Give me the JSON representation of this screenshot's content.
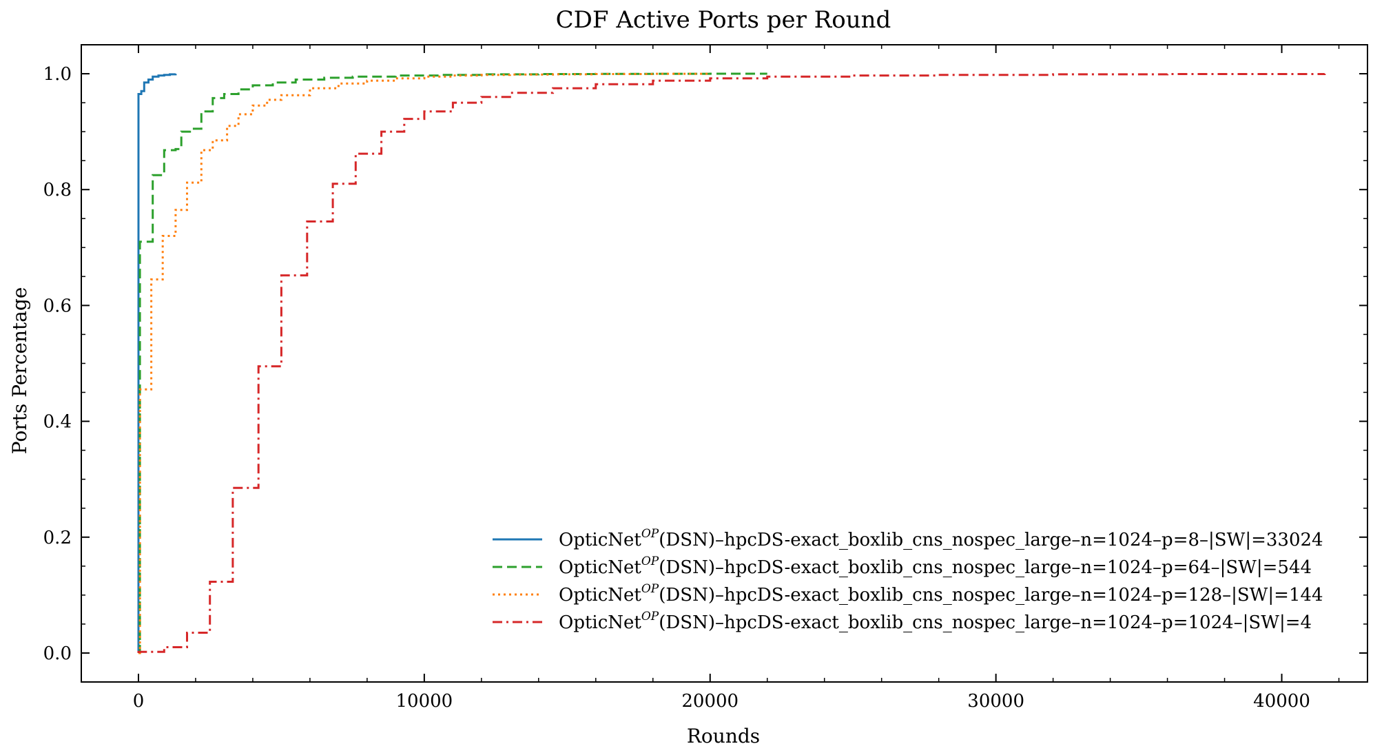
{
  "chart_data": {
    "type": "line",
    "title": "CDF Active Ports per Round",
    "xlabel": "Rounds",
    "ylabel": "Ports Percentage",
    "xlim": [
      -2000,
      43000
    ],
    "ylim": [
      -0.05,
      1.05
    ],
    "xticks": [
      0,
      10000,
      20000,
      30000,
      40000
    ],
    "yticks": [
      0.0,
      0.2,
      0.4,
      0.6,
      0.8,
      1.0
    ],
    "xtick_labels": [
      "0",
      "10000",
      "20000",
      "30000",
      "40000"
    ],
    "ytick_labels": [
      "0.0",
      "0.2",
      "0.4",
      "0.6",
      "0.8",
      "1.0"
    ],
    "grid": false,
    "legend_position": "bottom-right",
    "series": [
      {
        "name": "OpticNet^{OP}(DSN)–hpcDS-exact_boxlib_cns_nospec_large–n=1024–p=8–|SW|=33024",
        "color": "#1f77b4",
        "dash": "solid",
        "x": [
          0,
          100,
          200,
          350,
          500,
          700,
          900,
          1100,
          1300
        ],
        "y": [
          0.965,
          0.97,
          0.985,
          0.99,
          0.995,
          0.997,
          0.998,
          0.999,
          1.0
        ]
      },
      {
        "name": "OpticNet^{OP}(DSN)–hpcDS-exact_boxlib_cns_nospec_large–n=1024–p=64–|SW|=544",
        "color": "#2ca02c",
        "dash": "dashed",
        "x": [
          0,
          50,
          500,
          900,
          1300,
          1500,
          1800,
          2200,
          2600,
          3000,
          3500,
          4000,
          4700,
          5500,
          6500,
          7500,
          9000,
          10500,
          12000,
          14000,
          16000,
          18000,
          20000,
          22000
        ],
        "y": [
          0.0,
          0.71,
          0.825,
          0.868,
          0.87,
          0.9,
          0.905,
          0.935,
          0.958,
          0.965,
          0.973,
          0.98,
          0.985,
          0.99,
          0.993,
          0.995,
          0.997,
          0.998,
          0.999,
          0.9995,
          0.9998,
          0.9999,
          1.0,
          1.0
        ]
      },
      {
        "name": "OpticNet^{OP}(DSN)–hpcDS-exact_boxlib_cns_nospec_large–n=1024–p=128–|SW|=144",
        "color": "#ff7f0e",
        "dash": "dotted",
        "x": [
          0,
          50,
          450,
          850,
          1300,
          1700,
          2200,
          2600,
          3100,
          3500,
          4000,
          4500,
          5000,
          6000,
          7000,
          8000,
          9000,
          10000,
          11000,
          12000,
          13000,
          14500,
          16000,
          18000,
          20000
        ],
        "y": [
          0.0,
          0.455,
          0.645,
          0.72,
          0.765,
          0.812,
          0.868,
          0.885,
          0.91,
          0.93,
          0.945,
          0.955,
          0.963,
          0.975,
          0.983,
          0.988,
          0.992,
          0.995,
          0.997,
          0.998,
          0.9985,
          0.999,
          0.9995,
          0.9999,
          1.0
        ]
      },
      {
        "name": "OpticNet^{OP}(DSN)–hpcDS-exact_boxlib_cns_nospec_large–n=1024–p=1024–|SW|=4",
        "color": "#d62728",
        "dash": "dashdot",
        "x": [
          0,
          900,
          1700,
          2500,
          3300,
          4200,
          5000,
          5900,
          6800,
          7600,
          8500,
          9300,
          10000,
          11000,
          12000,
          13000,
          14500,
          16000,
          18000,
          20000,
          22000,
          25000,
          28000,
          32000,
          36000,
          41500
        ],
        "y": [
          0.002,
          0.01,
          0.035,
          0.123,
          0.285,
          0.495,
          0.652,
          0.745,
          0.81,
          0.862,
          0.9,
          0.922,
          0.935,
          0.95,
          0.96,
          0.967,
          0.975,
          0.982,
          0.988,
          0.992,
          0.995,
          0.997,
          0.998,
          0.999,
          0.9995,
          1.0
        ]
      }
    ]
  },
  "legend": [
    {
      "prefix": "OpticNet",
      "sup": "OP",
      "suffix": "(DSN)–hpcDS-exact_boxlib_cns_nospec_large–n=1024–p=8–|SW|=33024"
    },
    {
      "prefix": "OpticNet",
      "sup": "OP",
      "suffix": "(DSN)–hpcDS-exact_boxlib_cns_nospec_large–n=1024–p=64–|SW|=544"
    },
    {
      "prefix": "OpticNet",
      "sup": "OP",
      "suffix": "(DSN)–hpcDS-exact_boxlib_cns_nospec_large–n=1024–p=128–|SW|=144"
    },
    {
      "prefix": "OpticNet",
      "sup": "OP",
      "suffix": "(DSN)–hpcDS-exact_boxlib_cns_nospec_large–n=1024–p=1024–|SW|=4"
    }
  ]
}
